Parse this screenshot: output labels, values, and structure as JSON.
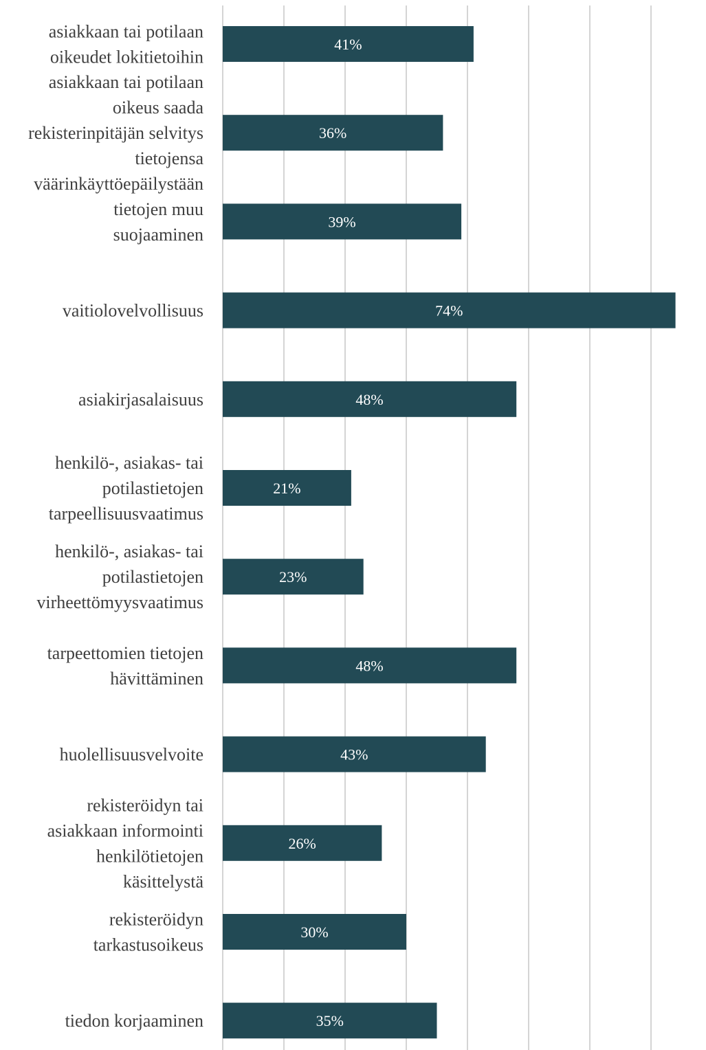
{
  "chart_data": {
    "type": "bar",
    "orientation": "horizontal",
    "categories": [
      [
        "asiakkaan tai potilaan",
        "oikeudet lokitietoihin"
      ],
      [
        "asiakkaan tai potilaan",
        "oikeus saada",
        "rekisterinpitäjän selvitys",
        "tietojensa",
        "väärinkäyttöepäilystään"
      ],
      [
        "tietojen muu",
        "suojaaminen"
      ],
      [
        "vaitiolovelvollisuus"
      ],
      [
        "asiakirjasalaisuus"
      ],
      [
        "henkilö-, asiakas- tai",
        "potilastietojen",
        "tarpeellisuusvaatimus"
      ],
      [
        "henkilö-, asiakas- tai",
        "potilastietojen",
        "virheettömyysvaatimus"
      ],
      [
        "tarpeettomien tietojen",
        "hävittäminen"
      ],
      [
        "huolellisuusvelvoite"
      ],
      [
        "rekisteröidyn tai",
        "asiakkaan informointi",
        "henkilötietojen",
        "käsittelystä"
      ],
      [
        "rekisteröidyn",
        "tarkastusoikeus"
      ],
      [
        "tiedon korjaaminen"
      ]
    ],
    "values": [
      41,
      36,
      39,
      74,
      48,
      21,
      23,
      48,
      43,
      26,
      30,
      35
    ],
    "value_labels": [
      "41%",
      "36%",
      "39%",
      "74%",
      "48%",
      "21%",
      "23%",
      "48%",
      "43%",
      "26%",
      "30%",
      "35%"
    ],
    "unit": "%",
    "xlim": [
      0,
      75
    ],
    "grid": true,
    "bar_color": "#224a55",
    "grid_color": "#d4d4d4",
    "text_color": "#3f3f3f",
    "title": "",
    "xlabel": "",
    "ylabel": ""
  }
}
